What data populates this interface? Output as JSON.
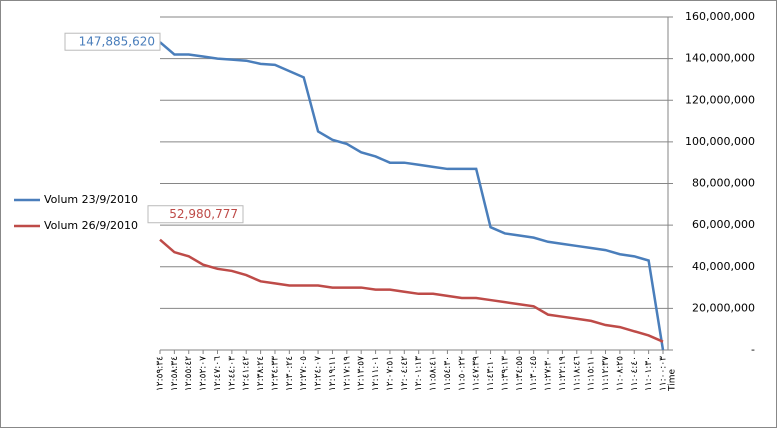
{
  "chart_data": {
    "type": "line",
    "x_label": "Time",
    "categories": [
      "١٢:٥٩:٣٤",
      "١٢:٥٨:٣٤",
      "١٢:٥٥:٤٢",
      "١٢:٥٢:٠٧",
      "١٢:٤٧:٠٦",
      "١٢:٤٤:٠٣",
      "١٢:٤١:٤٢",
      "١٢:٣٨:٢٤",
      "١٢:٣٤:٣٣",
      "١٢:٣٠:٢٤",
      "١٢:٢٧:٠٥",
      "١٢:٢٤:٠٧",
      "١٢:١٩:١١",
      "١٢:١٧:١٩",
      "١٢:١٣:٥٧",
      "١٢:١١:٠١",
      "١٢:٠٧:٥١",
      "١٢:٠٤:٤٢",
      "١٢:٠١:١٣",
      "١١:٥٨:٤١",
      "١١:٥٤:٣٠",
      "١١:٥٠:٢٢",
      "١١:٤٧:٣٩",
      "١١:٤٣:١٠",
      "١١:٣٩:١٣",
      "١١:٣٤:٥٥",
      "١١:٣٠:٤٥",
      "١١:٢٧:٣٠",
      "١١:٢٢:١٩",
      "١١:١٨:٤٦",
      "١١:١٥:١١",
      "١١:١٢:٣٧",
      "١١:٠٨:٢٥",
      "١١:٠٤:٤٠",
      "١١:٠١:٣٠",
      "١١:٠٠:٠٣"
    ],
    "series": [
      {
        "name": "Volum 23/9/2010",
        "color": "#4a7ebb",
        "values": [
          147885620,
          142000000,
          142000000,
          141000000,
          140000000,
          139500000,
          139000000,
          137500000,
          137000000,
          134000000,
          131000000,
          105000000,
          101000000,
          99000000,
          95000000,
          93000000,
          90000000,
          90000000,
          89000000,
          88000000,
          87000000,
          87000000,
          87000000,
          59000000,
          56000000,
          55000000,
          54000000,
          52000000,
          51000000,
          50000000,
          49000000,
          48000000,
          46000000,
          45000000,
          43000000,
          0
        ],
        "value_labels": [
          "147,885,620",
          null,
          null,
          null,
          null,
          null,
          null,
          null,
          null,
          null,
          null,
          null,
          null,
          null,
          null,
          null,
          null,
          null,
          null,
          null,
          null,
          null,
          null,
          null,
          null,
          null,
          null,
          null,
          null,
          null,
          null,
          null,
          null,
          null,
          null,
          null
        ]
      },
      {
        "name": "Volum 26/9/2010",
        "color": "#be4b48",
        "values": [
          52980777,
          47000000,
          45000000,
          41000000,
          39000000,
          38000000,
          36000000,
          33000000,
          32000000,
          31000000,
          31000000,
          31000000,
          30000000,
          30000000,
          30000000,
          29000000,
          29000000,
          28000000,
          27000000,
          27000000,
          26000000,
          25000000,
          25000000,
          24000000,
          23000000,
          22000000,
          21000000,
          17000000,
          16000000,
          15000000,
          14000000,
          12000000,
          11000000,
          9000000,
          7000000,
          4000000
        ],
        "value_labels": [
          "52,980,777",
          null,
          null,
          null,
          null,
          null,
          null,
          null,
          null,
          null,
          null,
          null,
          null,
          null,
          null,
          null,
          null,
          null,
          null,
          null,
          null,
          null,
          null,
          null,
          null,
          null,
          null,
          null,
          null,
          null,
          null,
          null,
          null,
          null,
          null,
          null
        ]
      }
    ],
    "ylim": [
      0,
      160000000
    ],
    "yticks": [
      {
        "value": 0,
        "label": "-"
      },
      {
        "value": 20000000,
        "label": "20,000,000"
      },
      {
        "value": 40000000,
        "label": "40,000,000"
      },
      {
        "value": 60000000,
        "label": "60,000,000"
      },
      {
        "value": 80000000,
        "label": "80,000,000"
      },
      {
        "value": 100000000,
        "label": "100,000,000"
      },
      {
        "value": 120000000,
        "label": "120,000,000"
      },
      {
        "value": 140000000,
        "label": "140,000,000"
      },
      {
        "value": 160000000,
        "label": "160,000,000"
      }
    ],
    "y_axis_side": "right",
    "grid": true,
    "legend": "left"
  }
}
